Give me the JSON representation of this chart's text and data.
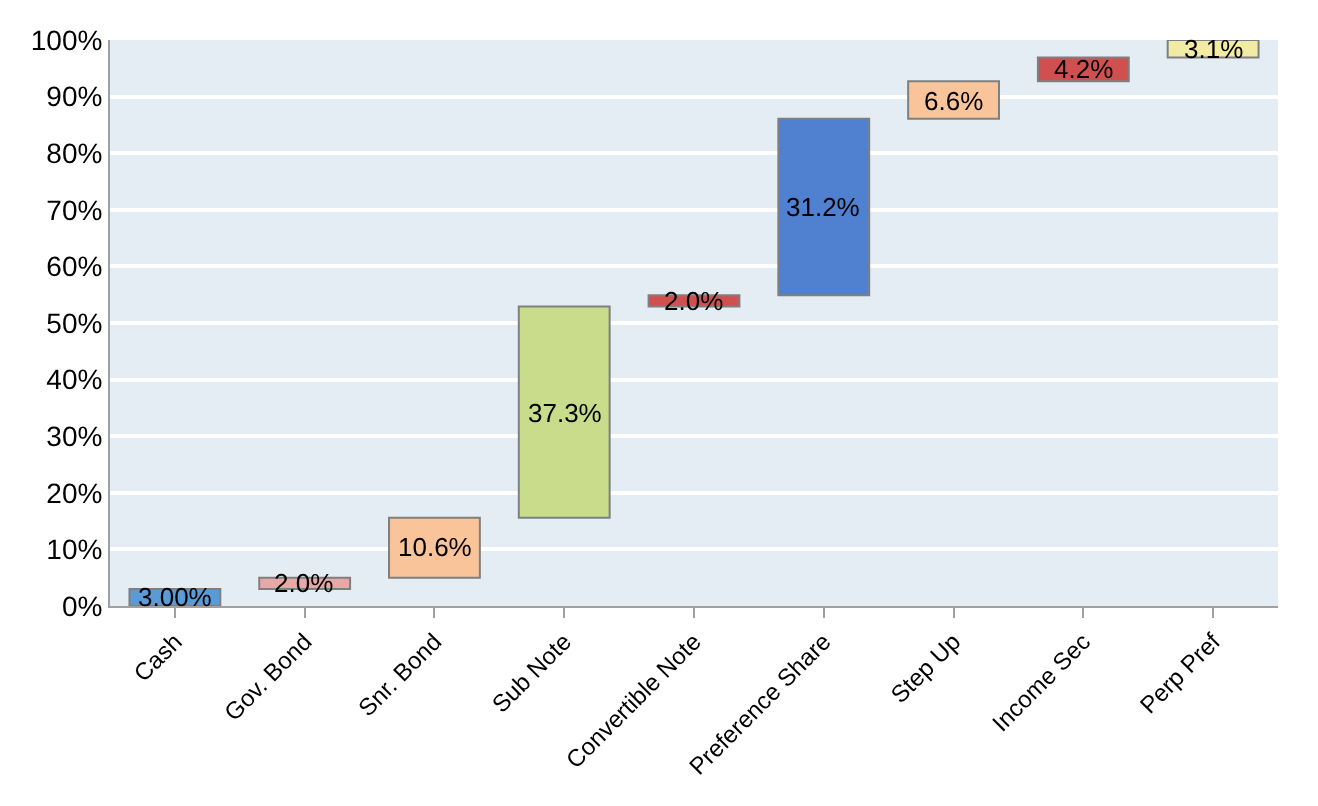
{
  "chart_data": {
    "type": "bar",
    "categories": [
      "Cash",
      "Gov. Bond",
      "Snr. Bond",
      "Sub Note",
      "Convertible Note",
      "Preference Share",
      "Step Up",
      "Income Sec",
      "Perp Pref"
    ],
    "values": [
      3.0,
      2.0,
      10.6,
      37.3,
      2.0,
      31.2,
      6.6,
      4.2,
      3.1
    ],
    "base": [
      0,
      3.0,
      5.0,
      15.6,
      52.9,
      54.9,
      86.1,
      92.7,
      96.9
    ],
    "value_labels": [
      "3.00%",
      "2.0%",
      "10.6%",
      "37.3%",
      "2.0%",
      "31.2%",
      "6.6%",
      "4.2%",
      "3.1%"
    ],
    "colors": [
      "#5b9bd5",
      "#e8a8a8",
      "#f9c49a",
      "#c9dc8c",
      "#d0504f",
      "#4f81d0",
      "#f9c49a",
      "#d0504f",
      "#f2eba4"
    ],
    "ylim": [
      0,
      100
    ],
    "yticks": [
      {
        "value": 0,
        "label": "0%"
      },
      {
        "value": 10,
        "label": "10%"
      },
      {
        "value": 20,
        "label": "20%"
      },
      {
        "value": 30,
        "label": "30%"
      },
      {
        "value": 40,
        "label": "40%"
      },
      {
        "value": 50,
        "label": "50%"
      },
      {
        "value": 60,
        "label": "60%"
      },
      {
        "value": 70,
        "label": "70%"
      },
      {
        "value": 80,
        "label": "80%"
      },
      {
        "value": 90,
        "label": "90%"
      },
      {
        "value": 100,
        "label": "100%"
      }
    ],
    "grid": "y"
  }
}
